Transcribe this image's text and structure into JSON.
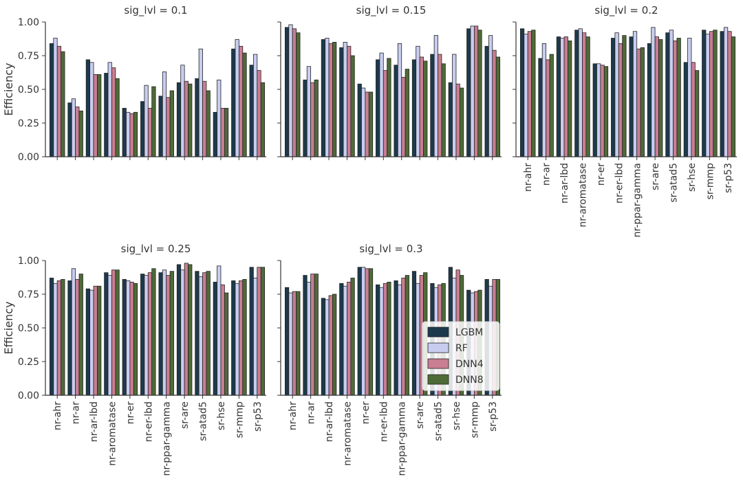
{
  "colors": {
    "LGBM": "#1d3a4c",
    "RF": "#c8cdf0",
    "DNN4": "#c97e92",
    "DNN8": "#4e6b37"
  },
  "chart_data": {
    "type": "bar",
    "ylabel": "Efficiency",
    "ylim": [
      0,
      1.0
    ],
    "yticks": [
      "0.00",
      "0.25",
      "0.50",
      "0.75",
      "1.00"
    ],
    "categories": [
      "nr-ahr",
      "nr-ar",
      "nr-ar-lbd",
      "nr-aromatase",
      "nr-er",
      "nr-er-lbd",
      "nr-ppar-gamma",
      "sr-are",
      "sr-atad5",
      "sr-hse",
      "sr-mmp",
      "sr-p53"
    ],
    "legend": {
      "placement": "lower-right of last panel",
      "entries": [
        "LGBM",
        "RF",
        "DNN4",
        "DNN8"
      ]
    },
    "panels": [
      {
        "title": "sig_lvl = 0.1",
        "series": [
          {
            "name": "LGBM",
            "values": [
              0.84,
              0.4,
              0.72,
              0.62,
              0.36,
              0.41,
              0.45,
              0.55,
              0.58,
              0.33,
              0.8,
              0.68
            ]
          },
          {
            "name": "RF",
            "values": [
              0.88,
              0.43,
              0.7,
              0.7,
              0.33,
              0.53,
              0.63,
              0.68,
              0.8,
              0.57,
              0.87,
              0.76
            ]
          },
          {
            "name": "DNN4",
            "values": [
              0.82,
              0.37,
              0.61,
              0.66,
              0.32,
              0.36,
              0.44,
              0.56,
              0.56,
              0.36,
              0.82,
              0.64
            ]
          },
          {
            "name": "DNN8",
            "values": [
              0.78,
              0.34,
              0.61,
              0.58,
              0.33,
              0.52,
              0.49,
              0.54,
              0.49,
              0.36,
              0.77,
              0.55
            ]
          }
        ]
      },
      {
        "title": "sig_lvl = 0.15",
        "series": [
          {
            "name": "LGBM",
            "values": [
              0.96,
              0.57,
              0.87,
              0.81,
              0.54,
              0.72,
              0.68,
              0.72,
              0.76,
              0.55,
              0.95,
              0.82
            ]
          },
          {
            "name": "RF",
            "values": [
              0.98,
              0.67,
              0.88,
              0.85,
              0.51,
              0.77,
              0.84,
              0.82,
              0.9,
              0.76,
              0.97,
              0.9
            ]
          },
          {
            "name": "DNN4",
            "values": [
              0.95,
              0.55,
              0.84,
              0.82,
              0.48,
              0.64,
              0.59,
              0.74,
              0.76,
              0.54,
              0.97,
              0.79
            ]
          },
          {
            "name": "DNN8",
            "values": [
              0.92,
              0.57,
              0.85,
              0.75,
              0.48,
              0.73,
              0.65,
              0.71,
              0.69,
              0.51,
              0.94,
              0.74
            ]
          }
        ]
      },
      {
        "title": "sig_lvl = 0.2",
        "series": [
          {
            "name": "LGBM",
            "values": [
              0.95,
              0.73,
              0.89,
              0.94,
              0.69,
              0.88,
              0.89,
              0.84,
              0.92,
              0.7,
              0.94,
              0.93
            ]
          },
          {
            "name": "RF",
            "values": [
              0.91,
              0.84,
              0.88,
              0.95,
              0.69,
              0.92,
              0.93,
              0.96,
              0.94,
              0.88,
              0.91,
              0.96
            ]
          },
          {
            "name": "DNN4",
            "values": [
              0.93,
              0.72,
              0.89,
              0.92,
              0.68,
              0.84,
              0.8,
              0.89,
              0.86,
              0.7,
              0.93,
              0.93
            ]
          },
          {
            "name": "DNN8",
            "values": [
              0.94,
              0.76,
              0.86,
              0.89,
              0.67,
              0.9,
              0.81,
              0.87,
              0.88,
              0.64,
              0.94,
              0.89
            ]
          }
        ]
      },
      {
        "title": "sig_lvl = 0.25",
        "series": [
          {
            "name": "LGBM",
            "values": [
              0.87,
              0.85,
              0.79,
              0.91,
              0.86,
              0.9,
              0.91,
              0.97,
              0.92,
              0.84,
              0.85,
              0.95
            ]
          },
          {
            "name": "RF",
            "values": [
              0.83,
              0.94,
              0.78,
              0.89,
              0.85,
              0.89,
              0.93,
              0.93,
              0.88,
              0.96,
              0.83,
              0.87
            ]
          },
          {
            "name": "DNN4",
            "values": [
              0.85,
              0.86,
              0.81,
              0.93,
              0.84,
              0.91,
              0.89,
              0.98,
              0.91,
              0.82,
              0.85,
              0.95
            ]
          },
          {
            "name": "DNN8",
            "values": [
              0.86,
              0.9,
              0.81,
              0.93,
              0.83,
              0.94,
              0.92,
              0.97,
              0.92,
              0.76,
              0.86,
              0.95
            ]
          }
        ]
      },
      {
        "title": "sig_lvl = 0.3",
        "series": [
          {
            "name": "LGBM",
            "values": [
              0.8,
              0.89,
              0.72,
              0.83,
              0.95,
              0.82,
              0.85,
              0.92,
              0.83,
              0.95,
              0.78,
              0.86
            ]
          },
          {
            "name": "RF",
            "values": [
              0.76,
              0.84,
              0.71,
              0.81,
              0.95,
              0.8,
              0.82,
              0.83,
              0.8,
              0.87,
              0.76,
              0.81
            ]
          },
          {
            "name": "DNN4",
            "values": [
              0.77,
              0.9,
              0.74,
              0.84,
              0.94,
              0.83,
              0.87,
              0.89,
              0.82,
              0.93,
              0.77,
              0.86
            ]
          },
          {
            "name": "DNN8",
            "values": [
              0.77,
              0.9,
              0.75,
              0.87,
              0.94,
              0.84,
              0.89,
              0.91,
              0.83,
              0.89,
              0.78,
              0.86
            ]
          }
        ]
      }
    ]
  }
}
